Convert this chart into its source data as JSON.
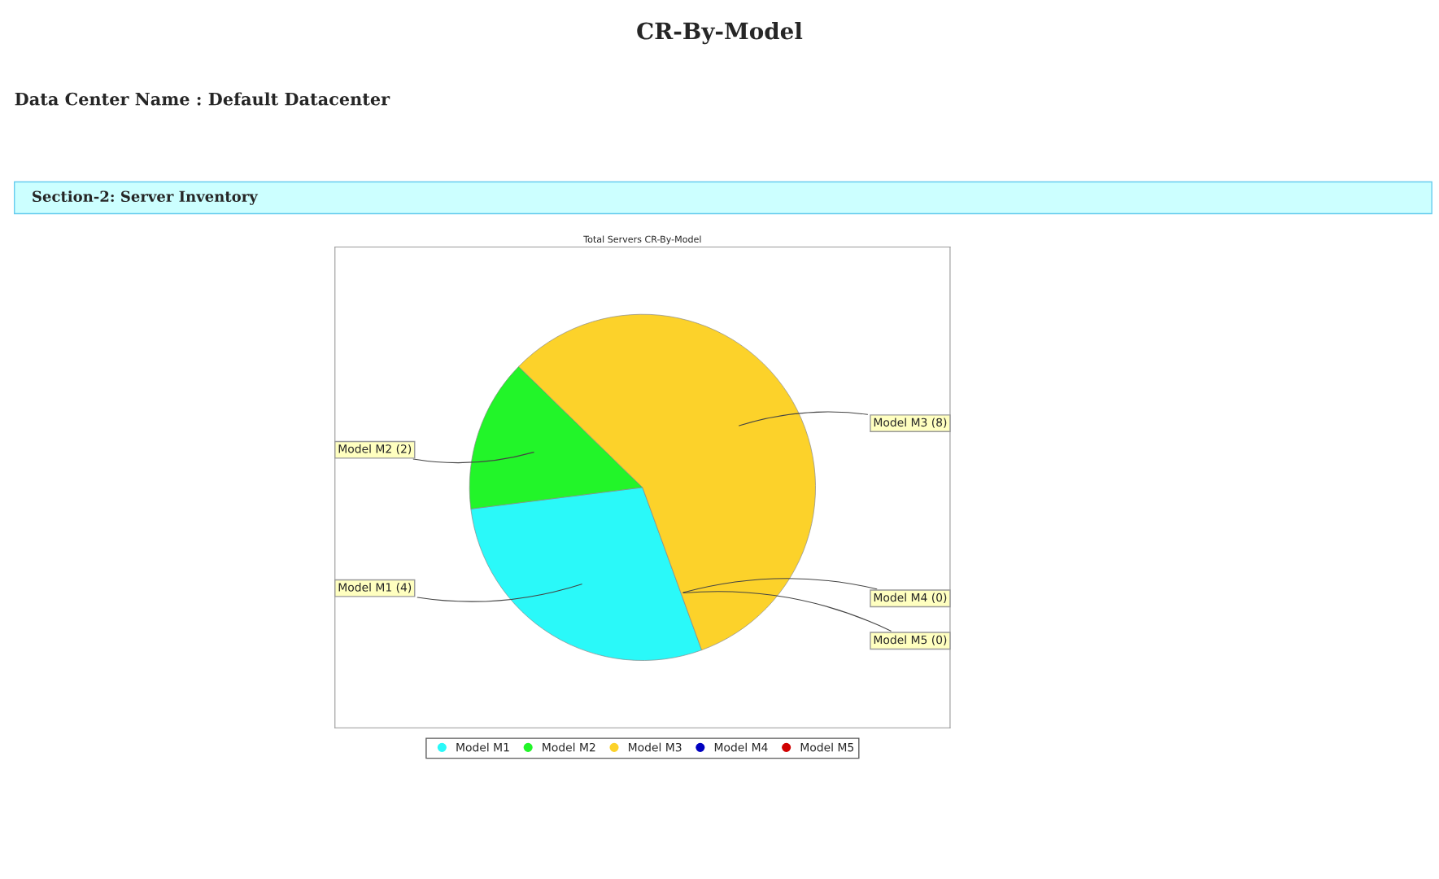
{
  "chart_data": {
    "type": "pie",
    "title": "CR-By-Model",
    "subtitle": "Data Center Name : Default Datacenter",
    "annotations": [
      "Section-2: Server Inventory",
      "Total Servers CR-By-Model"
    ],
    "categories": [
      "Model M1",
      "Model M2",
      "Model M3",
      "Model M4",
      "Model M5"
    ],
    "values": [
      4,
      2,
      8,
      0,
      0
    ],
    "colors": [
      "#2af9f9",
      "#22f529",
      "#fcd22a",
      "#0000c0",
      "#d00000"
    ],
    "value_labels": [
      "Model M1 (4)",
      "Model M2 (2)",
      "Model M3 (8)",
      "Model M4 (0)",
      "Model M5 (0)"
    ],
    "legend": "bottom"
  }
}
